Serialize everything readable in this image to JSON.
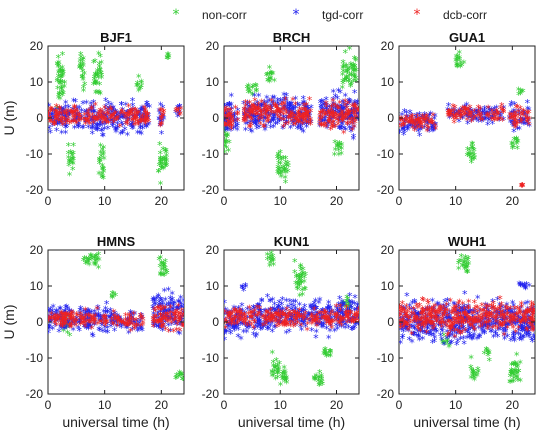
{
  "chart_data": [
    {
      "type": "scatter",
      "title": "BJF1",
      "xlabel": "",
      "ylabel": "U (m)",
      "xlim": [
        0,
        24
      ],
      "ylim": [
        -20,
        20
      ],
      "xticks": [
        0,
        10,
        20
      ],
      "yticks": [
        -20,
        -10,
        0,
        10,
        20
      ],
      "series": [
        {
          "name": "non-corr",
          "clusters": [
            [
              1.5,
              3.0,
              0,
              20
            ],
            [
              5.5,
              6.5,
              5,
              20
            ],
            [
              3.5,
              4.5,
              -18,
              -5
            ],
            [
              8.0,
              9.5,
              4,
              20
            ],
            [
              9.0,
              10.0,
              -20,
              -5
            ],
            [
              15.5,
              16.5,
              5,
              12
            ],
            [
              19.5,
              21.0,
              -20,
              -5
            ],
            [
              21.0,
              21.5,
              14,
              20
            ]
          ]
        },
        {
          "name": "tgd-corr",
          "clusters": [
            [
              0.0,
              18.0,
              -6,
              6
            ],
            [
              19.5,
              20.5,
              -6,
              5
            ],
            [
              22.5,
              23.5,
              -2,
              4
            ]
          ]
        },
        {
          "name": "dcb-corr",
          "clusters": [
            [
              0.0,
              18.0,
              -4,
              4
            ],
            [
              19.5,
              20.5,
              -4,
              4
            ],
            [
              22.5,
              23.5,
              -1,
              4
            ]
          ]
        }
      ]
    },
    {
      "type": "scatter",
      "title": "BRCH",
      "xlabel": "",
      "ylabel": "",
      "xlim": [
        0,
        24
      ],
      "ylim": [
        -20,
        20
      ],
      "xticks": [
        0,
        10,
        20
      ],
      "yticks": [
        -20,
        -10,
        0,
        10,
        20
      ],
      "series": [
        {
          "name": "non-corr",
          "clusters": [
            [
              0.0,
              1.0,
              -12,
              0
            ],
            [
              4.0,
              6.0,
              5,
              10
            ],
            [
              7.5,
              9.0,
              8,
              15
            ],
            [
              9.5,
              11.5,
              -20,
              -8
            ],
            [
              19.5,
              21.0,
              -12,
              -5
            ],
            [
              21.0,
              23.5,
              5,
              20
            ]
          ]
        },
        {
          "name": "tgd-corr",
          "clusters": [
            [
              0.0,
              2.5,
              -7,
              7
            ],
            [
              3.5,
              15.5,
              -6,
              8
            ],
            [
              17.0,
              24.0,
              -7,
              9
            ]
          ]
        },
        {
          "name": "dcb-corr",
          "clusters": [
            [
              0.0,
              2.5,
              -5,
              5
            ],
            [
              3.5,
              15.5,
              -4,
              6
            ],
            [
              17.0,
              24.0,
              -5,
              6
            ]
          ]
        }
      ]
    },
    {
      "type": "scatter",
      "title": "GUA1",
      "xlabel": "",
      "ylabel": "",
      "xlim": [
        0,
        24
      ],
      "ylim": [
        -20,
        20
      ],
      "xticks": [
        0,
        10,
        20
      ],
      "yticks": [
        -20,
        -10,
        0,
        10,
        20
      ],
      "series": [
        {
          "name": "non-corr",
          "clusters": [
            [
              10.0,
              11.5,
              12,
              20
            ],
            [
              12.0,
              13.5,
              -14,
              -5
            ],
            [
              19.5,
              21.0,
              -10,
              -4
            ],
            [
              21.0,
              22.0,
              5,
              9
            ]
          ]
        },
        {
          "name": "tgd-corr",
          "clusters": [
            [
              0.0,
              6.5,
              -6,
              3
            ],
            [
              8.5,
              18.5,
              -3,
              4
            ],
            [
              19.5,
              23.0,
              -5,
              5
            ]
          ]
        },
        {
          "name": "dcb-corr",
          "clusters": [
            [
              0.0,
              6.5,
              -5,
              2
            ],
            [
              8.5,
              18.5,
              -2,
              4
            ],
            [
              19.5,
              23.0,
              -4,
              4
            ],
            [
              21.5,
              22.0,
              -19.5,
              -18.5
            ]
          ]
        }
      ]
    },
    {
      "type": "scatter",
      "title": "HMNS",
      "xlabel": "universal time (h)",
      "ylabel": "U (m)",
      "xlim": [
        0,
        24
      ],
      "ylim": [
        -20,
        20
      ],
      "xticks": [
        0,
        10,
        20
      ],
      "yticks": [
        -20,
        -10,
        0,
        10,
        20
      ],
      "series": [
        {
          "name": "non-corr",
          "clusters": [
            [
              2.5,
              4.0,
              -6,
              4
            ],
            [
              6.0,
              9.0,
              14,
              20
            ],
            [
              11.0,
              12.0,
              5,
              9
            ],
            [
              19.5,
              21.0,
              10,
              20
            ],
            [
              22.5,
              24.0,
              -18,
              -13
            ]
          ]
        },
        {
          "name": "tgd-corr",
          "clusters": [
            [
              0.0,
              12.0,
              -5,
              6
            ],
            [
              12.0,
              17.0,
              -4,
              4
            ],
            [
              18.5,
              24.0,
              -6,
              10
            ]
          ]
        },
        {
          "name": "dcb-corr",
          "clusters": [
            [
              0.0,
              12.0,
              -3,
              4
            ],
            [
              12.0,
              17.0,
              -3,
              3
            ],
            [
              18.5,
              24.0,
              -4,
              6
            ]
          ]
        }
      ]
    },
    {
      "type": "scatter",
      "title": "KUN1",
      "xlabel": "universal time (h)",
      "ylabel": "",
      "xlim": [
        0,
        24
      ],
      "ylim": [
        -20,
        20
      ],
      "xticks": [
        0,
        10,
        20
      ],
      "yticks": [
        -20,
        -10,
        0,
        10,
        20
      ],
      "series": [
        {
          "name": "non-corr",
          "clusters": [
            [
              7.5,
              9.0,
              14,
              20
            ],
            [
              8.5,
              10.0,
              -18,
              -8
            ],
            [
              10.0,
              11.5,
              -20,
              -12
            ],
            [
              12.5,
              14.5,
              6,
              18
            ],
            [
              16.0,
              17.5,
              -20,
              -12
            ],
            [
              17.5,
              19.0,
              -12,
              -6
            ],
            [
              21.0,
              22.5,
              2,
              8
            ]
          ]
        },
        {
          "name": "tgd-corr",
          "clusters": [
            [
              0.0,
              6.0,
              -6,
              6
            ],
            [
              6.0,
              24.0,
              -5,
              8
            ],
            [
              3.0,
              4.0,
              8,
              11
            ]
          ]
        },
        {
          "name": "dcb-corr",
          "clusters": [
            [
              0.0,
              24.0,
              -3,
              5
            ]
          ]
        }
      ]
    },
    {
      "type": "scatter",
      "title": "WUH1",
      "xlabel": "universal time (h)",
      "ylabel": "",
      "xlim": [
        0,
        24
      ],
      "ylim": [
        -20,
        20
      ],
      "xticks": [
        0,
        10,
        20
      ],
      "yticks": [
        -20,
        -10,
        0,
        10,
        20
      ],
      "series": [
        {
          "name": "non-corr",
          "clusters": [
            [
              7.5,
              9.0,
              -8,
              -3
            ],
            [
              10.5,
              12.5,
              12,
              20
            ],
            [
              12.5,
              14.0,
              -18,
              -10
            ],
            [
              15.0,
              16.0,
              -12,
              -6
            ],
            [
              19.5,
              21.5,
              -20,
              -8
            ]
          ]
        },
        {
          "name": "tgd-corr",
          "clusters": [
            [
              0.0,
              24.0,
              -8,
              8
            ],
            [
              21.0,
              23.0,
              8,
              12
            ]
          ]
        },
        {
          "name": "dcb-corr",
          "clusters": [
            [
              0.0,
              24.0,
              -5,
              7
            ]
          ]
        }
      ]
    }
  ],
  "legend": {
    "placement": "top-right",
    "items": [
      {
        "label": "non-corr",
        "color": "#33cc33"
      },
      {
        "label": "tgd-corr",
        "color": "#2222ee"
      },
      {
        "label": "dcb-corr",
        "color": "#ee2222"
      }
    ]
  }
}
